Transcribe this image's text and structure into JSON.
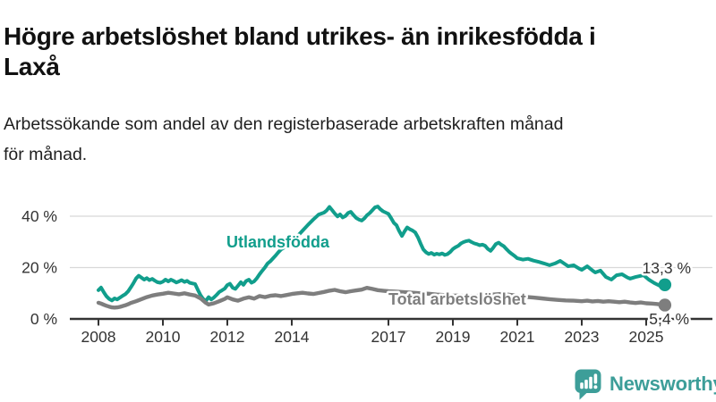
{
  "header": {
    "title_lines": [
      "Högre arbetslöshet bland utrikes- än inrikesfödda i",
      "Laxå"
    ],
    "subtitle_lines": [
      "Arbetssökande som andel av den registerbaserade arbetskraften månad",
      "för månad."
    ]
  },
  "branding": {
    "logo_text": "Newsworthy",
    "logo_color": "#3d9e99",
    "logo_icon": "bar-chart-speech-bubble-icon"
  },
  "chart_data": {
    "type": "line",
    "title": "Högre arbetslöshet bland utrikes- än inrikesfödda i Laxå",
    "subtitle": "Arbetssökande som andel av den registerbaserade arbetskraften månad för månad.",
    "unit": "%",
    "grid": "horizontal",
    "legend": "inline-labels",
    "colors": {
      "grid": "#d8d8d8",
      "axis": "#333333",
      "teal": "#119e8c",
      "gray": "#7e7e7e"
    },
    "x_axis": {
      "range": [
        2007.1,
        2026.05
      ],
      "ticks": [
        2008,
        2010,
        2012,
        2014,
        2017,
        2019,
        2021,
        2023,
        2025
      ],
      "labels": [
        "2008",
        "2010",
        "2012",
        "2014",
        "2017",
        "2019",
        "2021",
        "2023",
        "2025"
      ]
    },
    "y_axis": {
      "range": [
        0,
        46
      ],
      "ticks": [
        0,
        20,
        40
      ],
      "labels": [
        "0 %",
        "20 %",
        "40 %"
      ]
    },
    "series": [
      {
        "name": "Utlandsfödda",
        "color": "#119e8c",
        "end_label": "13,3 %",
        "end_value": 13.3,
        "points": [
          [
            2008.0,
            11.2
          ],
          [
            2008.08,
            12.2
          ],
          [
            2008.17,
            10.3
          ],
          [
            2008.25,
            8.8
          ],
          [
            2008.33,
            7.8
          ],
          [
            2008.42,
            7.2
          ],
          [
            2008.5,
            8.0
          ],
          [
            2008.58,
            7.6
          ],
          [
            2008.67,
            8.3
          ],
          [
            2008.75,
            9.0
          ],
          [
            2008.83,
            9.6
          ],
          [
            2008.92,
            10.7
          ],
          [
            2009.0,
            12.2
          ],
          [
            2009.08,
            13.8
          ],
          [
            2009.17,
            15.8
          ],
          [
            2009.25,
            16.8
          ],
          [
            2009.33,
            16.1
          ],
          [
            2009.42,
            15.3
          ],
          [
            2009.5,
            15.9
          ],
          [
            2009.58,
            15.1
          ],
          [
            2009.67,
            15.6
          ],
          [
            2009.75,
            14.9
          ],
          [
            2009.83,
            14.3
          ],
          [
            2009.92,
            14.1
          ],
          [
            2010.0,
            14.5
          ],
          [
            2010.08,
            15.3
          ],
          [
            2010.17,
            14.6
          ],
          [
            2010.25,
            15.3
          ],
          [
            2010.33,
            14.8
          ],
          [
            2010.42,
            14.2
          ],
          [
            2010.5,
            14.6
          ],
          [
            2010.58,
            15.1
          ],
          [
            2010.67,
            14.4
          ],
          [
            2010.75,
            14.8
          ],
          [
            2010.83,
            14.1
          ],
          [
            2010.92,
            13.8
          ],
          [
            2011.0,
            13.6
          ],
          [
            2011.08,
            11.4
          ],
          [
            2011.17,
            9.2
          ],
          [
            2011.25,
            7.8
          ],
          [
            2011.33,
            7.0
          ],
          [
            2011.42,
            8.5
          ],
          [
            2011.5,
            7.6
          ],
          [
            2011.58,
            8.3
          ],
          [
            2011.67,
            9.4
          ],
          [
            2011.75,
            10.5
          ],
          [
            2011.83,
            11.1
          ],
          [
            2011.92,
            11.8
          ],
          [
            2012.0,
            13.2
          ],
          [
            2012.08,
            13.7
          ],
          [
            2012.17,
            12.1
          ],
          [
            2012.25,
            11.7
          ],
          [
            2012.33,
            12.9
          ],
          [
            2012.42,
            14.3
          ],
          [
            2012.5,
            13.3
          ],
          [
            2012.58,
            14.7
          ],
          [
            2012.67,
            15.3
          ],
          [
            2012.75,
            14.1
          ],
          [
            2012.83,
            14.6
          ],
          [
            2012.92,
            15.9
          ],
          [
            2013.0,
            17.4
          ],
          [
            2013.08,
            18.7
          ],
          [
            2013.17,
            20.1
          ],
          [
            2013.25,
            21.6
          ],
          [
            2013.33,
            22.4
          ],
          [
            2013.42,
            23.6
          ],
          [
            2013.5,
            24.7
          ],
          [
            2013.58,
            25.9
          ],
          [
            2013.67,
            27.1
          ],
          [
            2013.75,
            27.7
          ],
          [
            2013.83,
            28.4
          ],
          [
            2013.92,
            29.2
          ],
          [
            2014.0,
            30.1
          ],
          [
            2014.17,
            32.1
          ],
          [
            2014.33,
            34.3
          ],
          [
            2014.5,
            36.6
          ],
          [
            2014.67,
            38.7
          ],
          [
            2014.83,
            40.6
          ],
          [
            2015.0,
            41.4
          ],
          [
            2015.08,
            42.2
          ],
          [
            2015.17,
            43.6
          ],
          [
            2015.25,
            42.4
          ],
          [
            2015.33,
            41.1
          ],
          [
            2015.42,
            39.9
          ],
          [
            2015.5,
            40.7
          ],
          [
            2015.58,
            39.5
          ],
          [
            2015.67,
            40.1
          ],
          [
            2015.75,
            41.3
          ],
          [
            2015.83,
            41.7
          ],
          [
            2015.92,
            40.4
          ],
          [
            2016.0,
            39.3
          ],
          [
            2016.08,
            38.7
          ],
          [
            2016.17,
            38.3
          ],
          [
            2016.25,
            39.1
          ],
          [
            2016.33,
            40.3
          ],
          [
            2016.42,
            41.2
          ],
          [
            2016.5,
            42.3
          ],
          [
            2016.58,
            43.4
          ],
          [
            2016.67,
            43.8
          ],
          [
            2016.75,
            42.7
          ],
          [
            2016.83,
            41.9
          ],
          [
            2016.92,
            41.4
          ],
          [
            2017.0,
            40.9
          ],
          [
            2017.08,
            39.3
          ],
          [
            2017.17,
            37.4
          ],
          [
            2017.25,
            36.5
          ],
          [
            2017.33,
            34.3
          ],
          [
            2017.42,
            32.3
          ],
          [
            2017.5,
            34.1
          ],
          [
            2017.58,
            35.6
          ],
          [
            2017.67,
            34.9
          ],
          [
            2017.75,
            34.4
          ],
          [
            2017.83,
            33.7
          ],
          [
            2017.92,
            31.7
          ],
          [
            2018.0,
            29.3
          ],
          [
            2018.08,
            27.1
          ],
          [
            2018.17,
            25.9
          ],
          [
            2018.25,
            25.3
          ],
          [
            2018.33,
            25.7
          ],
          [
            2018.42,
            25.0
          ],
          [
            2018.5,
            25.4
          ],
          [
            2018.58,
            25.1
          ],
          [
            2018.67,
            25.5
          ],
          [
            2018.75,
            24.9
          ],
          [
            2018.83,
            25.2
          ],
          [
            2018.92,
            26.1
          ],
          [
            2019.0,
            27.2
          ],
          [
            2019.08,
            27.9
          ],
          [
            2019.17,
            28.5
          ],
          [
            2019.25,
            29.4
          ],
          [
            2019.33,
            29.9
          ],
          [
            2019.42,
            30.3
          ],
          [
            2019.5,
            30.5
          ],
          [
            2019.58,
            29.9
          ],
          [
            2019.67,
            29.4
          ],
          [
            2019.75,
            29.1
          ],
          [
            2019.83,
            28.7
          ],
          [
            2019.92,
            28.9
          ],
          [
            2020.0,
            28.5
          ],
          [
            2020.08,
            27.3
          ],
          [
            2020.17,
            26.5
          ],
          [
            2020.25,
            27.7
          ],
          [
            2020.33,
            29.1
          ],
          [
            2020.42,
            29.7
          ],
          [
            2020.5,
            28.9
          ],
          [
            2020.58,
            28.3
          ],
          [
            2020.67,
            27.1
          ],
          [
            2020.75,
            26.1
          ],
          [
            2020.83,
            25.3
          ],
          [
            2020.92,
            24.5
          ],
          [
            2021.0,
            23.6
          ],
          [
            2021.17,
            23.1
          ],
          [
            2021.33,
            23.4
          ],
          [
            2021.5,
            22.7
          ],
          [
            2021.67,
            22.2
          ],
          [
            2021.83,
            21.6
          ],
          [
            2022.0,
            20.9
          ],
          [
            2022.17,
            21.6
          ],
          [
            2022.33,
            22.6
          ],
          [
            2022.5,
            21.2
          ],
          [
            2022.58,
            20.5
          ],
          [
            2022.75,
            20.9
          ],
          [
            2022.92,
            19.6
          ],
          [
            2023.0,
            19.1
          ],
          [
            2023.17,
            20.5
          ],
          [
            2023.33,
            18.9
          ],
          [
            2023.42,
            18.1
          ],
          [
            2023.58,
            18.8
          ],
          [
            2023.75,
            16.3
          ],
          [
            2023.92,
            15.3
          ],
          [
            2024.08,
            17.0
          ],
          [
            2024.25,
            17.4
          ],
          [
            2024.42,
            16.1
          ],
          [
            2024.5,
            15.7
          ],
          [
            2024.67,
            16.3
          ],
          [
            2024.92,
            17.0
          ],
          [
            2025.08,
            15.3
          ],
          [
            2025.25,
            14.0
          ],
          [
            2025.42,
            12.9
          ],
          [
            2025.58,
            13.3
          ]
        ]
      },
      {
        "name": "Total arbetslöshet",
        "color": "#7e7e7e",
        "end_label": "5,4 %",
        "end_value": 5.4,
        "points": [
          [
            2008.0,
            6.3
          ],
          [
            2008.08,
            6.0
          ],
          [
            2008.17,
            5.5
          ],
          [
            2008.25,
            5.1
          ],
          [
            2008.33,
            4.8
          ],
          [
            2008.42,
            4.5
          ],
          [
            2008.5,
            4.4
          ],
          [
            2008.58,
            4.5
          ],
          [
            2008.67,
            4.7
          ],
          [
            2008.75,
            5.0
          ],
          [
            2008.83,
            5.3
          ],
          [
            2008.92,
            5.7
          ],
          [
            2009.0,
            6.2
          ],
          [
            2009.17,
            6.9
          ],
          [
            2009.33,
            7.7
          ],
          [
            2009.5,
            8.5
          ],
          [
            2009.67,
            9.1
          ],
          [
            2009.83,
            9.5
          ],
          [
            2010.0,
            9.8
          ],
          [
            2010.17,
            10.2
          ],
          [
            2010.33,
            9.9
          ],
          [
            2010.5,
            9.6
          ],
          [
            2010.67,
            10.0
          ],
          [
            2010.83,
            9.5
          ],
          [
            2011.0,
            9.1
          ],
          [
            2011.17,
            8.0
          ],
          [
            2011.33,
            6.3
          ],
          [
            2011.42,
            5.6
          ],
          [
            2011.58,
            6.1
          ],
          [
            2011.75,
            6.9
          ],
          [
            2011.92,
            7.8
          ],
          [
            2012.0,
            8.4
          ],
          [
            2012.17,
            7.6
          ],
          [
            2012.33,
            7.1
          ],
          [
            2012.5,
            7.9
          ],
          [
            2012.67,
            8.4
          ],
          [
            2012.83,
            7.9
          ],
          [
            2013.0,
            8.9
          ],
          [
            2013.17,
            8.5
          ],
          [
            2013.33,
            9.0
          ],
          [
            2013.5,
            9.2
          ],
          [
            2013.67,
            8.9
          ],
          [
            2013.83,
            9.3
          ],
          [
            2014.0,
            9.7
          ],
          [
            2014.17,
            10.0
          ],
          [
            2014.33,
            10.2
          ],
          [
            2014.5,
            9.9
          ],
          [
            2014.67,
            9.7
          ],
          [
            2014.83,
            10.1
          ],
          [
            2015.0,
            10.5
          ],
          [
            2015.17,
            11.0
          ],
          [
            2015.33,
            11.3
          ],
          [
            2015.5,
            10.8
          ],
          [
            2015.67,
            10.4
          ],
          [
            2015.83,
            10.8
          ],
          [
            2016.0,
            11.1
          ],
          [
            2016.17,
            11.4
          ],
          [
            2016.33,
            12.1
          ],
          [
            2016.5,
            11.7
          ],
          [
            2016.67,
            11.2
          ],
          [
            2016.83,
            11.0
          ],
          [
            2017.0,
            10.8
          ],
          [
            2017.25,
            10.6
          ],
          [
            2017.5,
            10.4
          ],
          [
            2017.75,
            10.2
          ],
          [
            2018.0,
            10.0
          ],
          [
            2018.25,
            9.8
          ],
          [
            2018.5,
            9.5
          ],
          [
            2018.75,
            9.3
          ],
          [
            2019.0,
            9.1
          ],
          [
            2019.25,
            9.0
          ],
          [
            2019.5,
            8.9
          ],
          [
            2019.75,
            9.0
          ],
          [
            2020.0,
            9.2
          ],
          [
            2020.25,
            9.5
          ],
          [
            2020.5,
            9.7
          ],
          [
            2020.75,
            9.4
          ],
          [
            2021.0,
            9.0
          ],
          [
            2021.25,
            8.6
          ],
          [
            2021.5,
            8.3
          ],
          [
            2021.75,
            8.0
          ],
          [
            2022.0,
            7.7
          ],
          [
            2022.25,
            7.4
          ],
          [
            2022.5,
            7.2
          ],
          [
            2022.75,
            7.1
          ],
          [
            2023.0,
            6.9
          ],
          [
            2023.17,
            7.1
          ],
          [
            2023.33,
            6.8
          ],
          [
            2023.5,
            7.0
          ],
          [
            2023.67,
            6.7
          ],
          [
            2023.83,
            6.9
          ],
          [
            2024.0,
            6.7
          ],
          [
            2024.17,
            6.5
          ],
          [
            2024.33,
            6.7
          ],
          [
            2024.5,
            6.4
          ],
          [
            2024.67,
            6.2
          ],
          [
            2024.83,
            6.4
          ],
          [
            2025.0,
            6.1
          ],
          [
            2025.17,
            6.0
          ],
          [
            2025.33,
            5.8
          ],
          [
            2025.5,
            5.5
          ],
          [
            2025.58,
            5.4
          ]
        ]
      }
    ]
  }
}
